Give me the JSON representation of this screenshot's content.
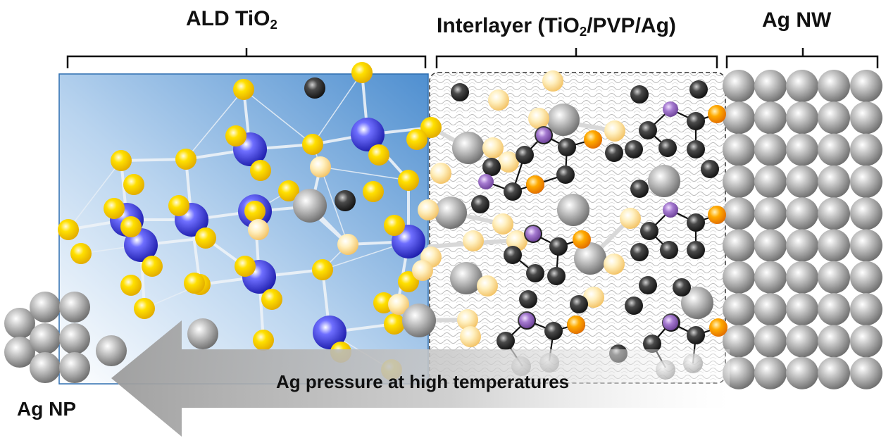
{
  "labels": {
    "ald_main": "ALD TiO",
    "ald_sub": "2",
    "interlayer_pre": "Interlayer (TiO",
    "interlayer_sub": "2",
    "interlayer_post": "/PVP/Ag)",
    "ag_nw": "Ag NW",
    "ag_np": "Ag NP",
    "arrow": "Ag pressure at high temperatures"
  },
  "colors": {
    "titanium": "#2a2ad6",
    "oxygen": "#ffd400",
    "oxygen_pale": "#ffe9a8",
    "carbon": "#2b2b2b",
    "silver": "#9a9a9a",
    "nitrogen": "#9b6fc0",
    "orange_atom": "#ff9a00",
    "ald_gradient_light": "#ffffff",
    "ald_gradient_dark": "#4f8fd0",
    "arrow": "#bdbdbd"
  }
}
